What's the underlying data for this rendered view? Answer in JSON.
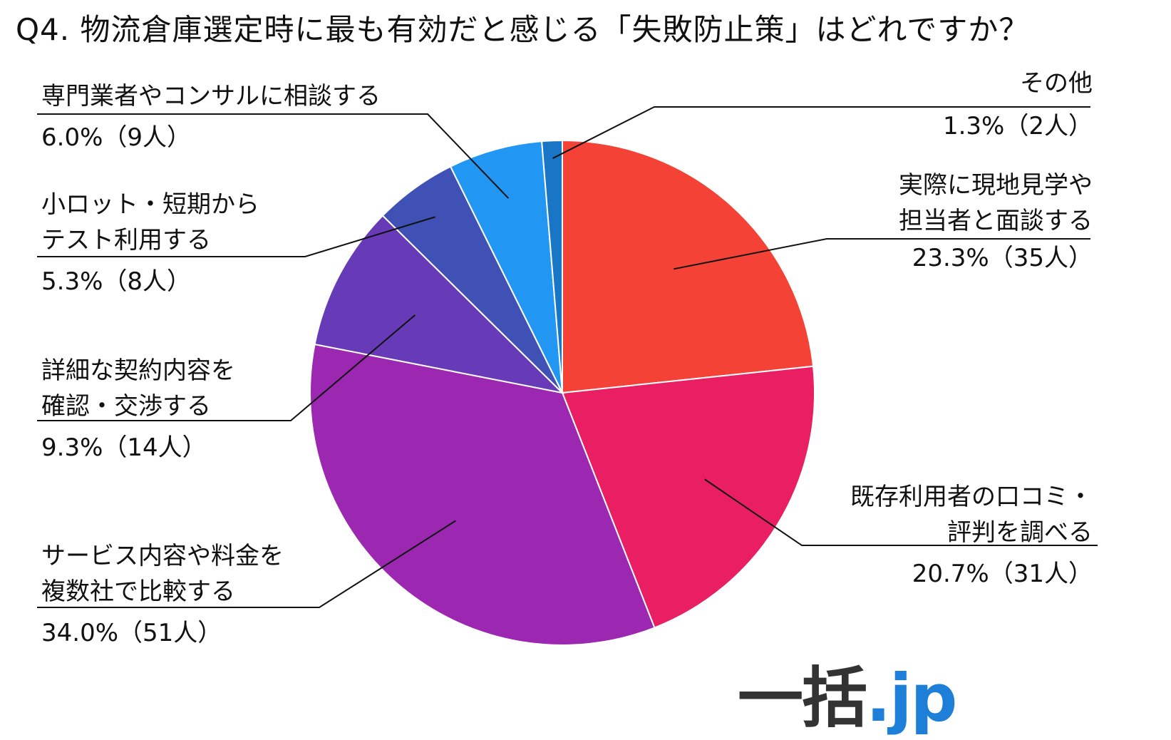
{
  "chart_data": {
    "type": "pie",
    "title": "Q4. 物流倉庫選定時に最も有効だと感じる「失敗防止策」はどれですか？",
    "slices": [
      {
        "label_lines": [
          "実際に現地見学や",
          "担当者と面談する"
        ],
        "value_label": "23.3%（35人）",
        "percent": 23.3,
        "count": 35,
        "color": "#f44336"
      },
      {
        "label_lines": [
          "既存利用者の口コミ・",
          "評判を調べる"
        ],
        "value_label": "20.7%（31人）",
        "percent": 20.7,
        "count": 31,
        "color": "#e91e63"
      },
      {
        "label_lines": [
          "サービス内容や料金を",
          "複数社で比較する"
        ],
        "value_label": "34.0%（51人）",
        "percent": 34.0,
        "count": 51,
        "color": "#9c27b0"
      },
      {
        "label_lines": [
          "詳細な契約内容を",
          "確認・交渉する"
        ],
        "value_label": "9.3%（14人）",
        "percent": 9.3,
        "count": 14,
        "color": "#673ab7"
      },
      {
        "label_lines": [
          "小ロット・短期から",
          "テスト利用する"
        ],
        "value_label": "5.3%（8人）",
        "percent": 5.3,
        "count": 8,
        "color": "#3f51b5"
      },
      {
        "label_lines": [
          "専門業者やコンサルに相談する"
        ],
        "value_label": "6.0%（9人）",
        "percent": 6.0,
        "count": 9,
        "color": "#2196f3"
      },
      {
        "label_lines": [
          "その他"
        ],
        "value_label": "1.3%（2人）",
        "percent": 1.3,
        "count": 2,
        "color": "#1976c6"
      }
    ]
  },
  "logo": {
    "kanji": "一括",
    "dot": ".jp"
  }
}
